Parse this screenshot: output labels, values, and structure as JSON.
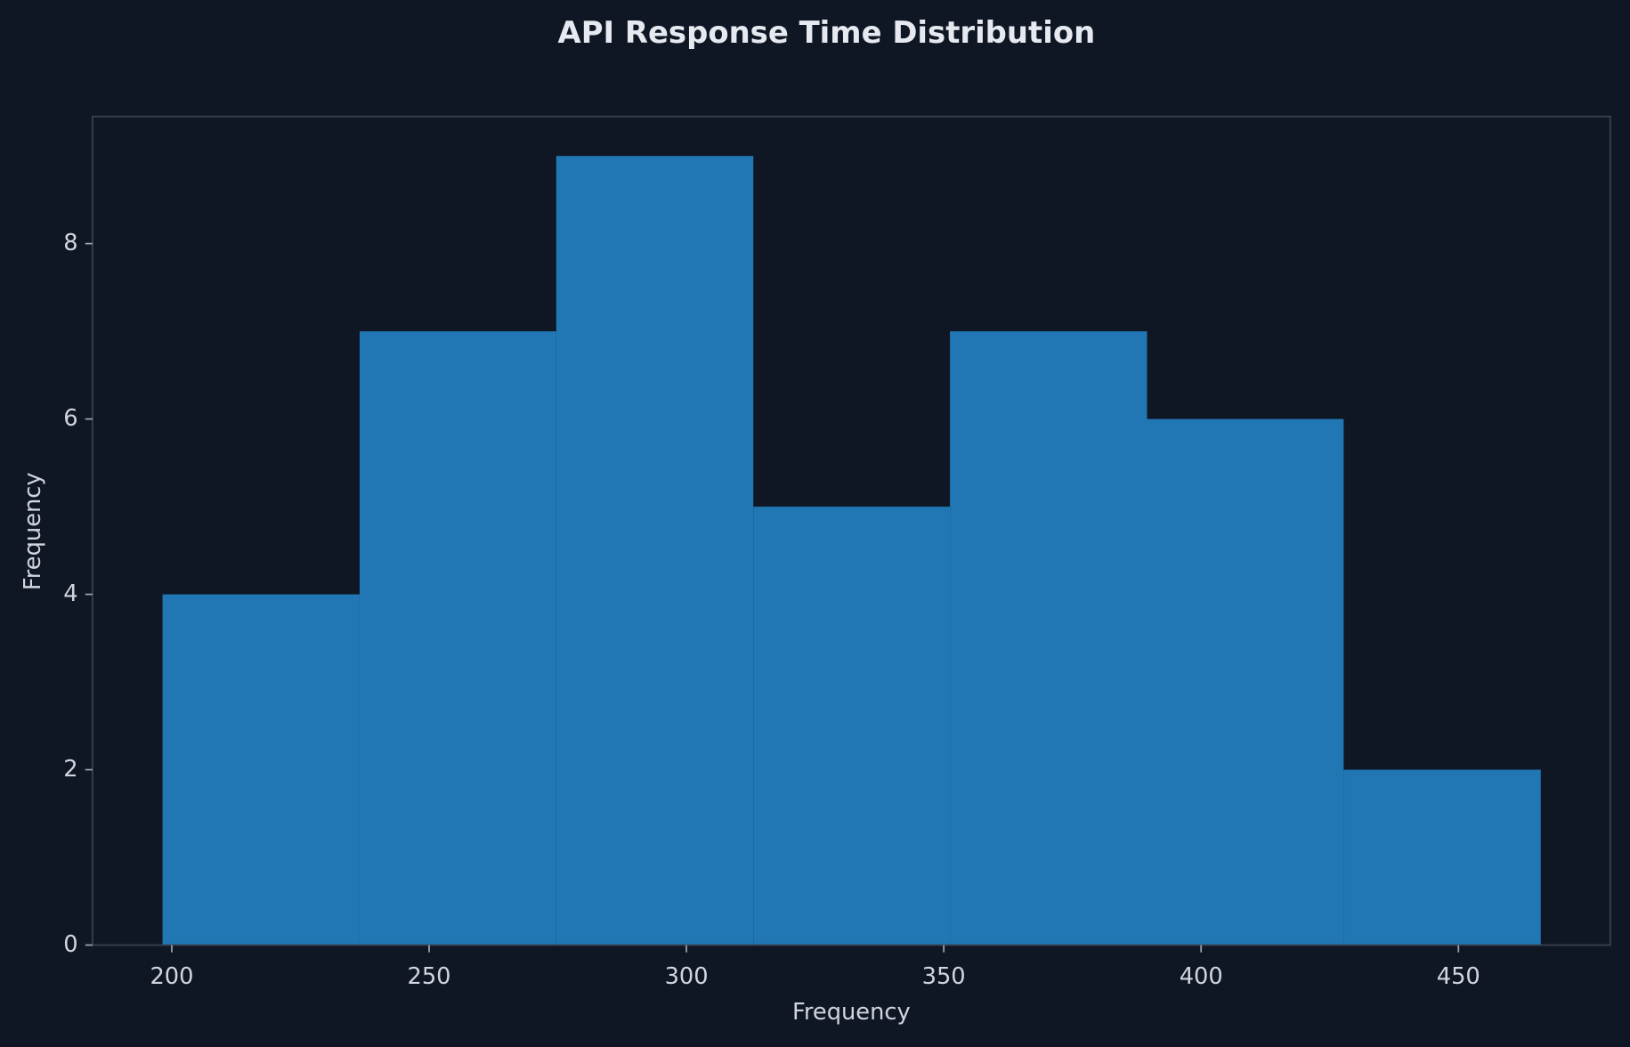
{
  "chart_data": {
    "type": "histogram",
    "title": "API Response Time Distribution",
    "x_label": "Frequency",
    "y_label": "Frequency",
    "bins": [
      198.2,
      236.5,
      274.7,
      313.0,
      351.2,
      389.5,
      427.7,
      466.0
    ],
    "counts": [
      4,
      7,
      9,
      5,
      7,
      6,
      2
    ],
    "color": "#2077b4",
    "xlim": [
      184.6,
      479.5
    ],
    "xticks": [
      200,
      250,
      300,
      350,
      400,
      450
    ],
    "ylim": [
      0,
      9.45
    ],
    "yticks": [
      0,
      2,
      4,
      6,
      8
    ]
  }
}
